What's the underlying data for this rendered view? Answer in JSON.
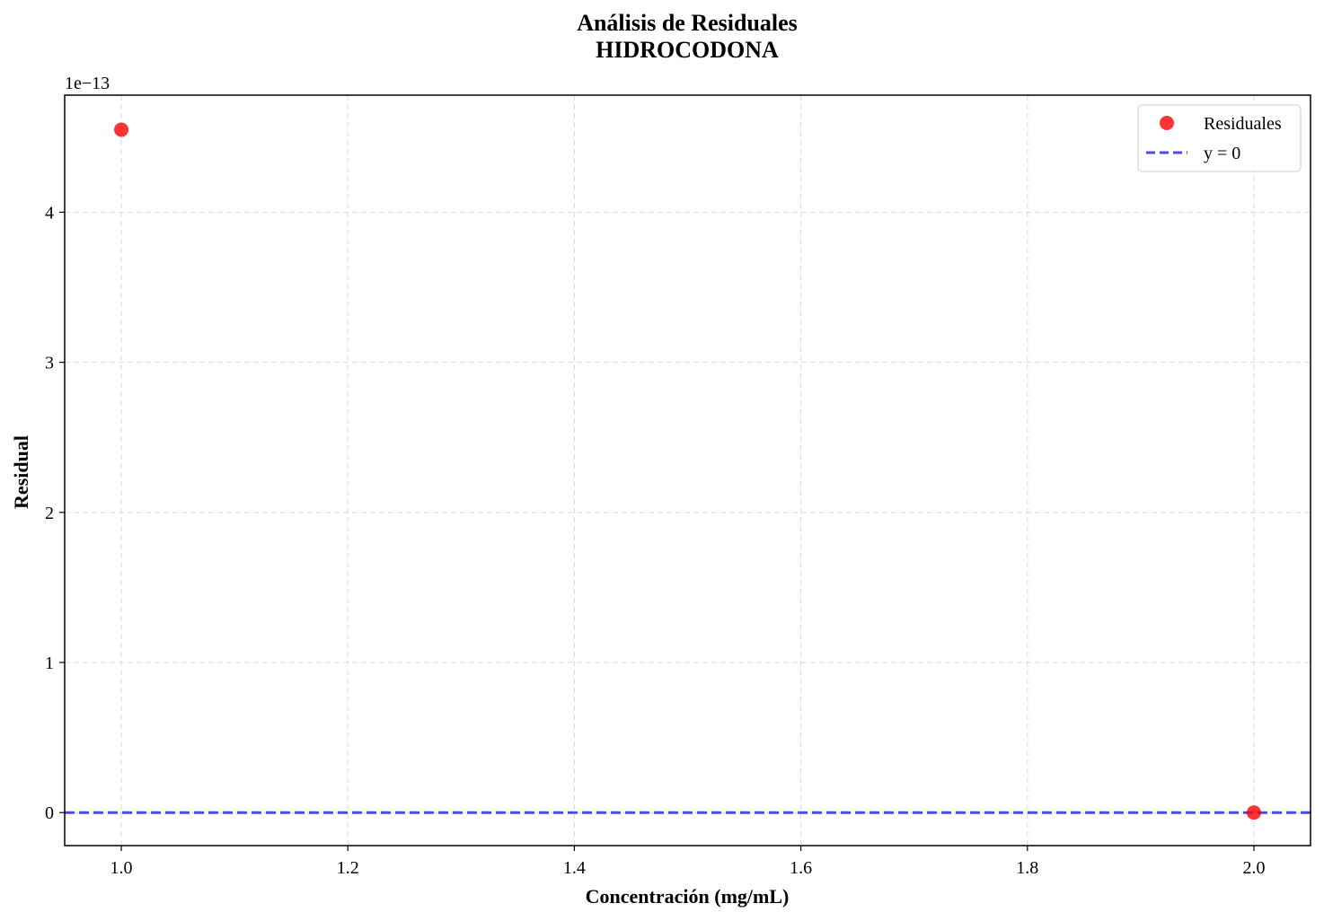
{
  "chart_data": {
    "type": "scatter",
    "title": "Análisis de Residuales",
    "subtitle": "HIDROCODONA",
    "xlabel": "Concentración (mg/mL)",
    "ylabel": "Residual",
    "y_offset_label": "1e−13",
    "xlim": [
      0.95,
      2.05
    ],
    "ylim": [
      -0.22,
      4.78
    ],
    "x_ticks": [
      1.0,
      1.2,
      1.4,
      1.6,
      1.8,
      2.0
    ],
    "x_tick_labels": [
      "1.0",
      "1.2",
      "1.4",
      "1.6",
      "1.8",
      "2.0"
    ],
    "y_ticks": [
      0,
      1,
      2,
      3,
      4
    ],
    "y_tick_labels": [
      "0",
      "1",
      "2",
      "3",
      "4"
    ],
    "grid": true,
    "legend_position": "top-right",
    "series": [
      {
        "name": "Residuales",
        "kind": "scatter",
        "color": "#ff0000",
        "points": [
          {
            "x": 1.0,
            "y": 4.55
          },
          {
            "x": 2.0,
            "y": 0.0
          }
        ]
      },
      {
        "name": "y = 0",
        "kind": "hline",
        "color": "#0000dd",
        "y": 0
      }
    ]
  }
}
